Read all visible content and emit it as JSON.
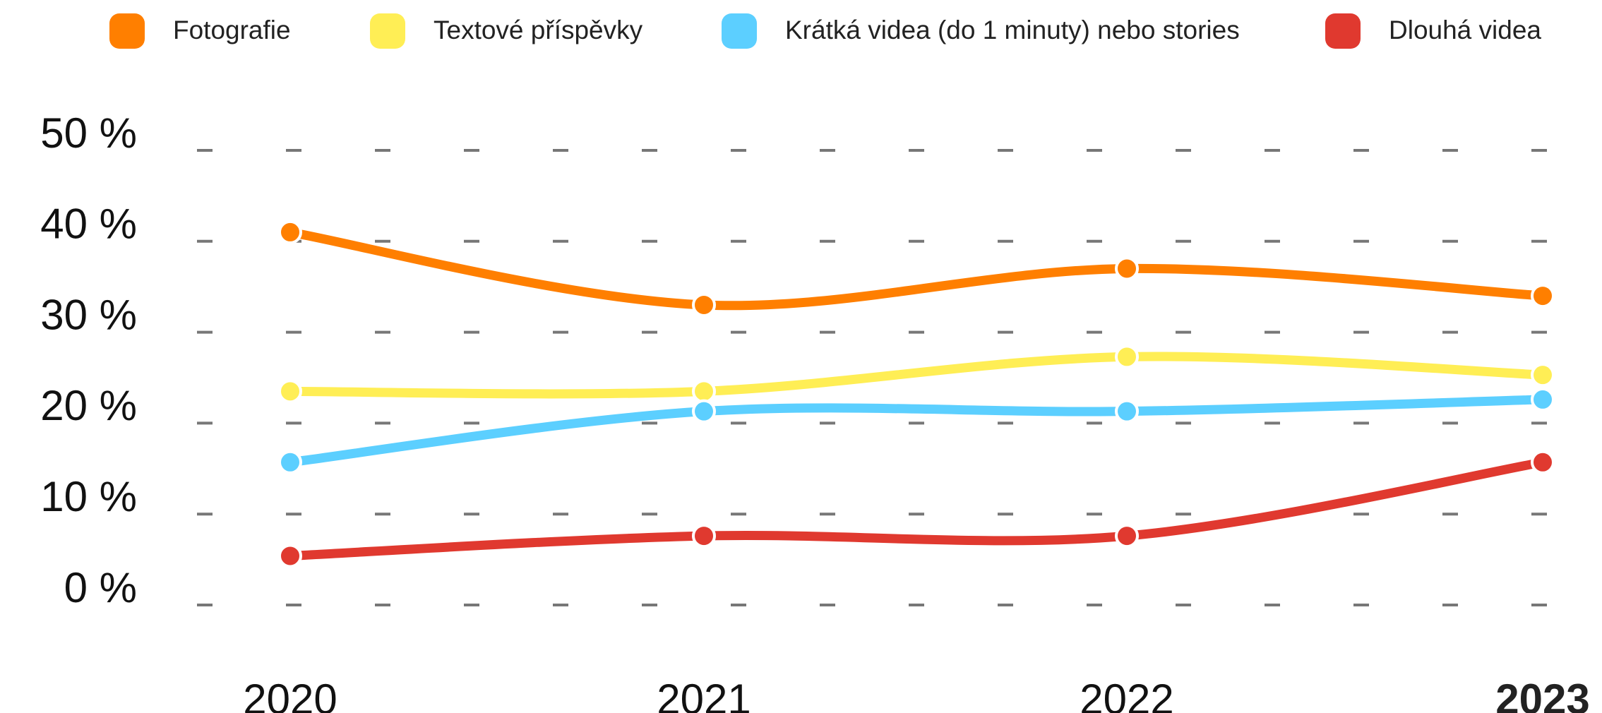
{
  "chart_data": {
    "type": "line",
    "categories": [
      "2020",
      "2021",
      "2022",
      "2023"
    ],
    "series": [
      {
        "name": "Fotografie",
        "color": "#ff7f00",
        "values": [
          41,
          33,
          37,
          34
        ]
      },
      {
        "name": "Textové příspěvky",
        "color": "#ffee55",
        "values": [
          23.5,
          23.5,
          27.3,
          25.3
        ]
      },
      {
        "name": "Krátká videa (do 1 minuty)  nebo stories",
        "color": "#5ccfff",
        "values": [
          15.7,
          21.3,
          21.3,
          22.6
        ]
      },
      {
        "name": "Dlouhá videa",
        "color": "#e0392f",
        "values": [
          5.4,
          7.6,
          7.6,
          15.7
        ]
      }
    ],
    "ylim": [
      0,
      50
    ],
    "yticks": [
      {
        "value": 0,
        "label": "0 %"
      },
      {
        "value": 10,
        "label": "10 %"
      },
      {
        "value": 20,
        "label": "20 %"
      },
      {
        "value": 30,
        "label": "30 %"
      },
      {
        "value": 40,
        "label": "40 %"
      },
      {
        "value": 50,
        "label": "50 %"
      }
    ],
    "grid": true,
    "legend": "top"
  }
}
